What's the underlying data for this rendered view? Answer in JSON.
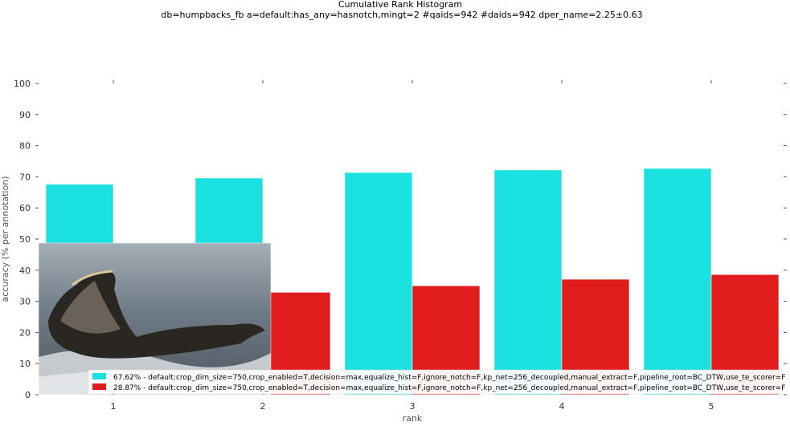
{
  "chart_data": {
    "type": "bar",
    "title": "Cumulative Rank Histogram",
    "subtitle": "db=humpbacks_fb a=default:has_any=hasnotch,mingt=2 #qaids=942 #daids=942 dper_name=2.25±0.63",
    "xlabel": "rank",
    "ylabel": "accuracy (% per annotation)",
    "categories": [
      "1",
      "2",
      "3",
      "4",
      "5"
    ],
    "ylim": [
      0,
      100
    ],
    "yticks": [
      "0",
      "10",
      "20",
      "30",
      "40",
      "50",
      "60",
      "70",
      "80",
      "90",
      "100"
    ],
    "grid": false,
    "legend_position": "bottom-right",
    "series": [
      {
        "name": "67.62% - default:crop_dim_size=750,crop_enabled=T,decision=max,equalize_hist=F,ignore_notch=F,kp_net=256_decoupled,manual_extract=F,pipeline_root=BC_DTW,use_te_scorer=F",
        "color": "#1ce1e1",
        "values": [
          67.62,
          69.6,
          71.4,
          72.2,
          72.7
        ]
      },
      {
        "name": "28.87% - default:crop_dim_size=750,crop_enabled=T,decision=max,equalize_hist=F,ignore_notch=F,kp_net=256_decoupled,manual_extract=F,pipeline_root=BC_DTW,use_te_scorer=F",
        "color": "#e01c1c",
        "values": [
          28.87,
          32.9,
          35.0,
          37.1,
          38.6
        ]
      }
    ]
  }
}
